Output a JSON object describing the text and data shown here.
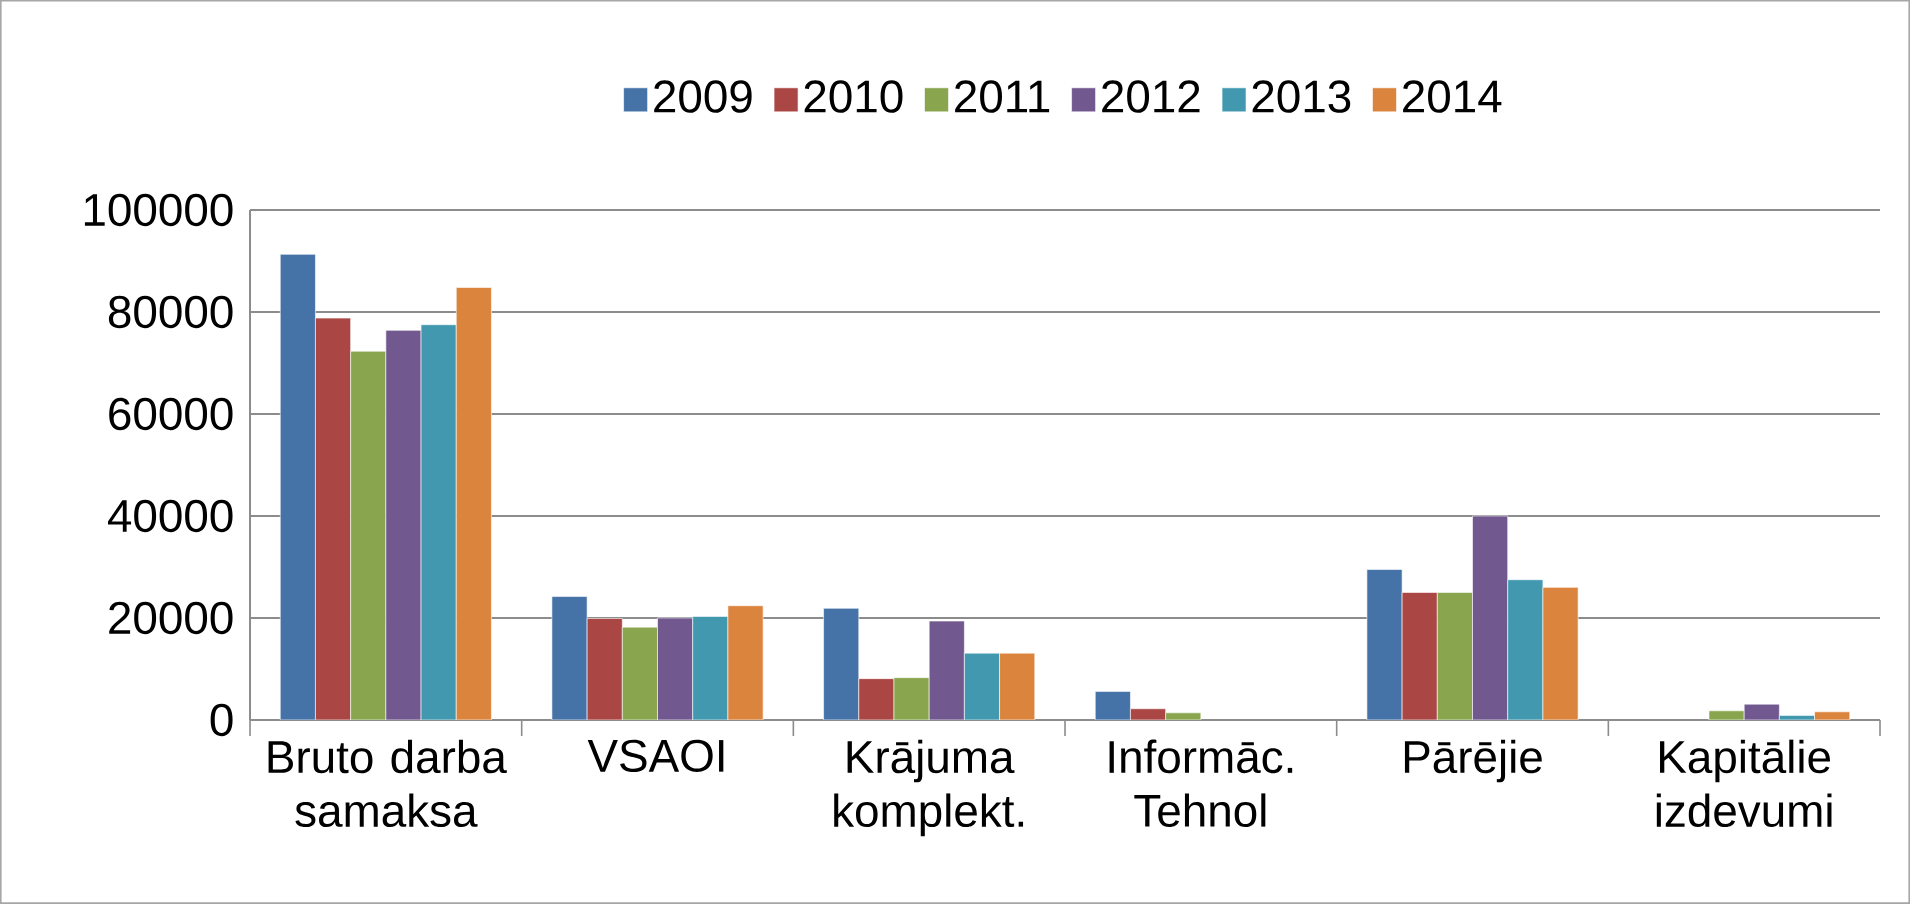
{
  "chart_data": {
    "type": "bar",
    "categories": [
      "Bruto darba samaksa",
      "VSAOI",
      "Krājuma komplekt.",
      "Informāc. Tehnol",
      "Pārējie",
      "Kapitālie izdevumi"
    ],
    "series": [
      {
        "name": "2009",
        "color": "#4572a7",
        "values": [
          91300,
          24200,
          21900,
          5600,
          29500,
          null
        ]
      },
      {
        "name": "2010",
        "color": "#aa4643",
        "values": [
          78800,
          19900,
          8100,
          2200,
          25000,
          null
        ]
      },
      {
        "name": "2011",
        "color": "#89a54e",
        "values": [
          72300,
          18200,
          8300,
          1400,
          25000,
          1800
        ]
      },
      {
        "name": "2012",
        "color": "#71588f",
        "values": [
          76400,
          20000,
          19400,
          null,
          40000,
          3100
        ]
      },
      {
        "name": "2013",
        "color": "#4198af",
        "values": [
          77500,
          20300,
          13100,
          null,
          27500,
          900
        ]
      },
      {
        "name": "2014",
        "color": "#db843d",
        "values": [
          84800,
          22400,
          13100,
          null,
          26000,
          1600
        ]
      }
    ],
    "ylim": [
      0,
      100000
    ],
    "yticks": [
      0,
      20000,
      40000,
      60000,
      80000,
      100000
    ],
    "grid": "y",
    "legend": "top"
  }
}
